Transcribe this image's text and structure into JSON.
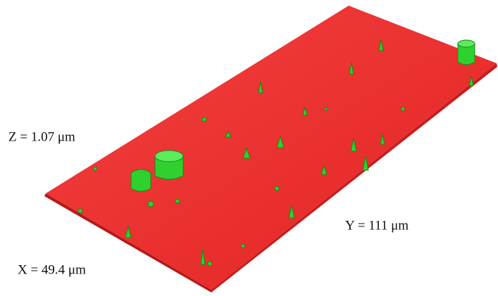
{
  "labels": {
    "z": "Z = 1.07 μm",
    "y": "Y = 111 μm",
    "x": "X = 49.4 μm"
  }
}
